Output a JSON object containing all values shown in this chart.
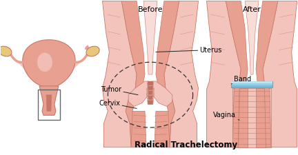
{
  "title": "Radical Trachelectomy",
  "title_fontsize": 8.5,
  "title_fontweight": "bold",
  "bg_color": "#ffffff",
  "label_before": "Before",
  "label_after": "After",
  "label_fontsize": 7.0,
  "skin_light": "#f2c4bc",
  "skin_mid": "#e8a090",
  "skin_dark": "#c87868",
  "skin_inner": "#d08878",
  "skin_pale": "#f8dcd8",
  "skin_crease": "#c07060",
  "band_color": "#90d0e8",
  "band_highlight": "#c8ecf8",
  "band_shadow": "#60a8c8",
  "text_color": "#000000",
  "line_color": "#222222",
  "ovary_color": "#e8c878",
  "tube_color": "#d09080"
}
